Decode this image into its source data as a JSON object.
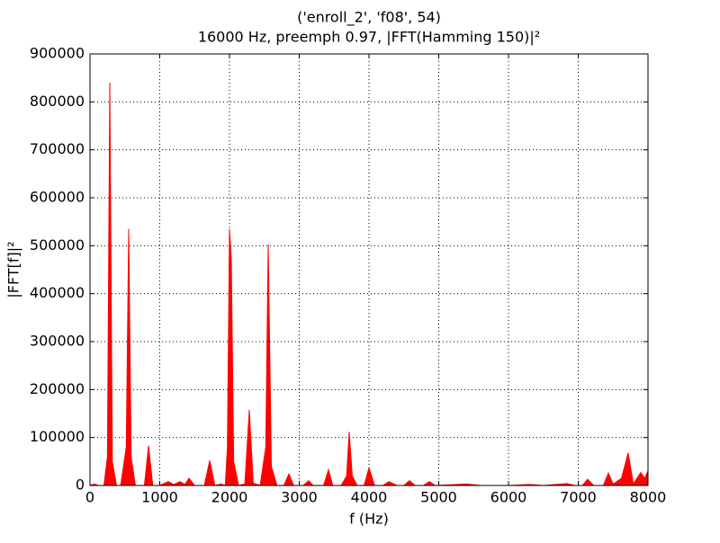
{
  "chart_data": {
    "type": "area",
    "title": "('enroll_2', 'f08', 54)",
    "subtitle": "16000 Hz, preemph 0.97, |FFT(Hamming 150)|²",
    "x_label": "f (Hz)",
    "y_label": "|FFT[f]|²",
    "x": [
      0,
      60,
      120,
      200,
      250,
      284,
      320,
      380,
      440,
      520,
      555,
      590,
      650,
      780,
      839,
      900,
      1000,
      1123,
      1200,
      1290,
      1360,
      1420,
      1500,
      1640,
      1716,
      1790,
      1880,
      1940,
      1970,
      2000,
      2026,
      2060,
      2130,
      2220,
      2284,
      2340,
      2440,
      2520,
      2555,
      2600,
      2680,
      2780,
      2852,
      2920,
      3060,
      3135,
      3200,
      3350,
      3419,
      3480,
      3600,
      3680,
      3716,
      3760,
      3830,
      3930,
      4000,
      4080,
      4200,
      4284,
      4400,
      4500,
      4580,
      4660,
      4780,
      4865,
      4950,
      5400,
      5600,
      6000,
      6300,
      6500,
      6839,
      6950,
      7060,
      7135,
      7220,
      7360,
      7432,
      7500,
      7620,
      7716,
      7790,
      7897,
      7950,
      8000
    ],
    "series": [
      {
        "color": "#ff0000",
        "values": [
          0,
          3000,
          0,
          0,
          60000,
          840000,
          50000,
          0,
          0,
          80000,
          535000,
          60000,
          0,
          0,
          83000,
          0,
          0,
          8000,
          2000,
          8000,
          2000,
          15000,
          0,
          0,
          52000,
          0,
          3000,
          0,
          80000,
          535000,
          470000,
          50000,
          0,
          3000,
          158000,
          5000,
          0,
          80000,
          503000,
          40000,
          0,
          0,
          24000,
          0,
          0,
          10000,
          0,
          0,
          33000,
          0,
          0,
          20000,
          112000,
          20000,
          0,
          0,
          37000,
          0,
          0,
          8000,
          0,
          0,
          10000,
          0,
          0,
          8000,
          0,
          3000,
          0,
          0,
          2000,
          0,
          4000,
          0,
          0,
          13000,
          0,
          0,
          26000,
          3000,
          15000,
          68000,
          3000,
          27000,
          15000,
          30000
        ]
      }
    ],
    "xlim": [
      0,
      8000
    ],
    "xticks": [
      0,
      1000,
      2000,
      3000,
      4000,
      5000,
      6000,
      7000,
      8000
    ],
    "ylim": [
      0,
      900000
    ],
    "yticks": [
      0,
      100000,
      200000,
      300000,
      400000,
      500000,
      600000,
      700000,
      800000,
      900000
    ],
    "grid": true
  }
}
